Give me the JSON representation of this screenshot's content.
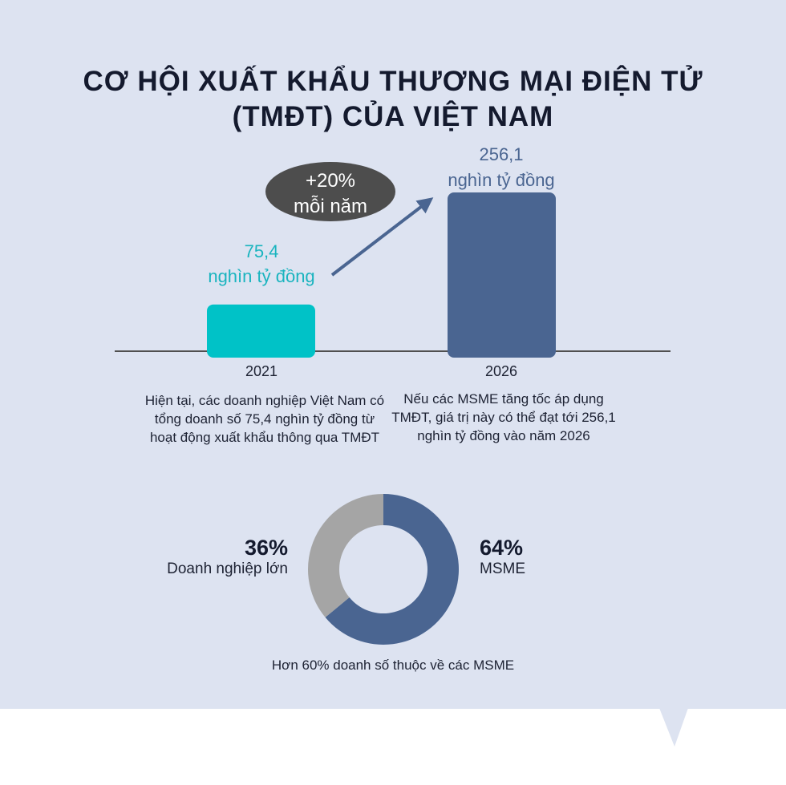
{
  "title": {
    "line1": "CƠ HỘI XUẤT KHẨU THƯƠNG MẠI ĐIỆN TỬ",
    "line2": "(TMĐT) CỦA VIỆT NAM"
  },
  "growth_badge": {
    "line1": "+20%",
    "line2": "mỗi năm"
  },
  "captions": {
    "left": "Hiện tại, các doanh nghiệp Việt Nam có tổng doanh số 75,4 nghìn tỷ đồng từ hoạt động xuất khẩu thông qua TMĐT",
    "right": "Nếu các MSME tăng tốc áp dụng TMĐT, giá trị này có thể đạt tới 256,1 nghìn tỷ đồng vào năm 2026"
  },
  "footer": "Hơn 60% doanh số thuộc về các MSME",
  "colors": {
    "bar_2021": "#00c2c7",
    "bar_2026": "#4a6591",
    "donut_msme": "#4a6591",
    "donut_large": "#a5a5a5",
    "badge": "#4d4d4d",
    "label_2021": "#1ab4bf",
    "label_2026": "#4a6591"
  },
  "chart_data": [
    {
      "type": "bar",
      "categories": [
        "2021",
        "2026"
      ],
      "values": [
        75.4,
        256.1
      ],
      "value_labels": [
        {
          "number": "75,4",
          "unit": "nghìn tỷ đồng"
        },
        {
          "number": "256,1",
          "unit": "nghìn tỷ đồng"
        }
      ],
      "title": "",
      "xlabel": "",
      "ylabel": "",
      "ylim": [
        0,
        256.1
      ],
      "grid": false
    },
    {
      "type": "pie",
      "donut": true,
      "categories": [
        "MSME",
        "Doanh nghiệp lớn"
      ],
      "values": [
        64,
        36
      ],
      "labels": [
        "64%",
        "36%"
      ]
    }
  ]
}
